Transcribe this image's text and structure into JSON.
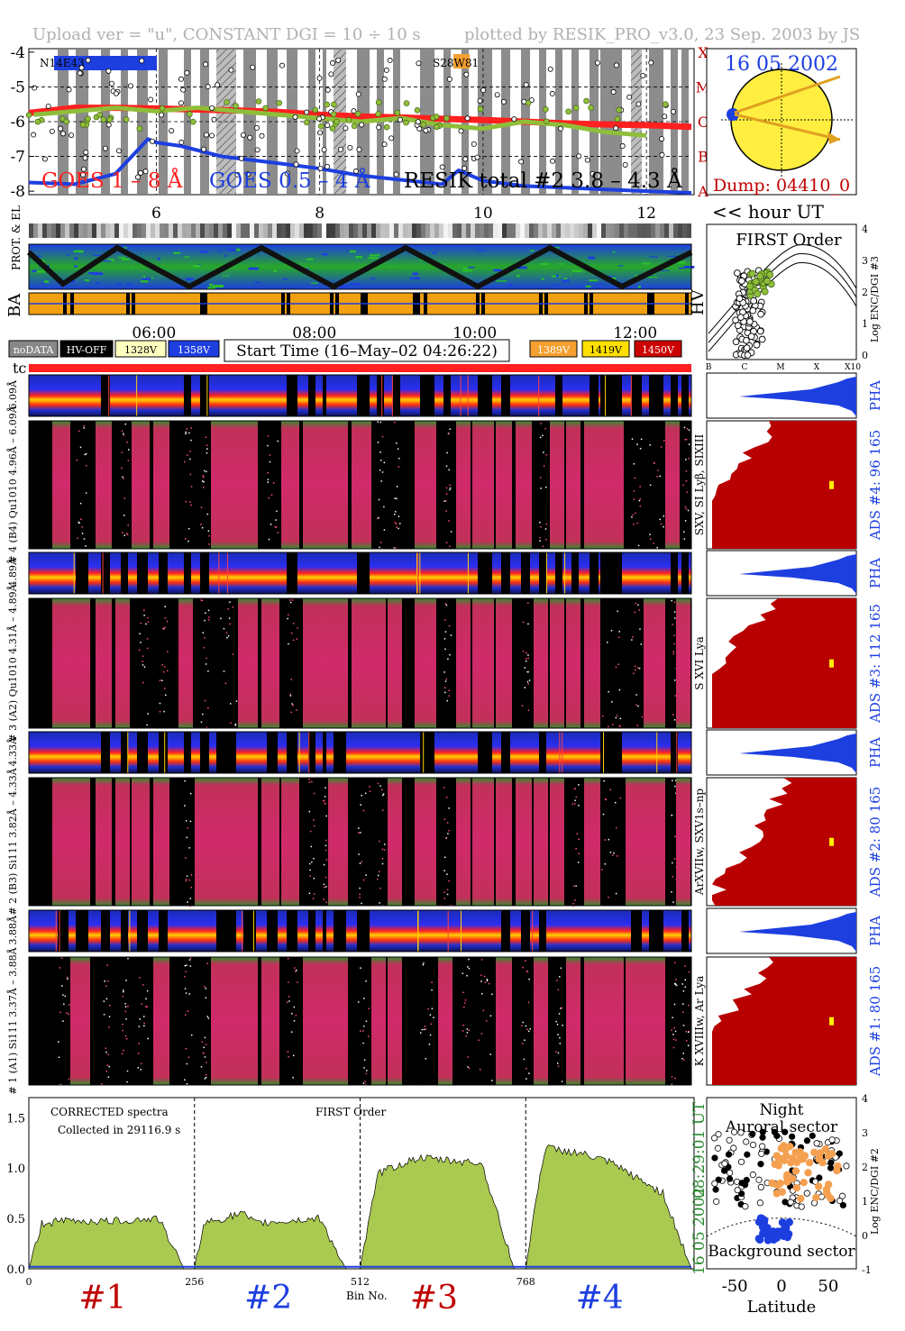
{
  "header": {
    "upload_text": "Upload ver = \"u\", CONSTANT  DGI =  10 ÷  10 s",
    "plotted_text": "plotted by RESIK_PRO_v3.0, 23 Sep. 2003 by JS"
  },
  "goes": {
    "yticks": [
      "-4",
      "-5",
      "-6",
      "-7",
      "-8"
    ],
    "flare_classes": [
      "X",
      "M",
      "C",
      "B",
      "A"
    ],
    "ar_labels": [
      "N14E43",
      "S28W81"
    ],
    "xticks": [
      "6",
      "8",
      "10",
      "12"
    ],
    "hour_label": "<< hour UT",
    "legend": [
      "GOES 1 – 8 Å",
      "GOES 0.5 – 4 Å",
      "RESIK total #2  3.8 – 4.3 Å"
    ],
    "colors": {
      "goes_long": "#ff2020",
      "goes_short": "#1d3fe0",
      "resik": "#8fbe3a"
    }
  },
  "sun": {
    "date": "16 05 2002",
    "dump": "Dump: 04410_0"
  },
  "status": {
    "side_labels": [
      "PROT. & EL",
      "BA"
    ],
    "hv_label": "HV",
    "time_ticks": [
      "06:00",
      "08:00",
      "10:00",
      "12:00"
    ]
  },
  "first_order": {
    "title": "FIRST Order",
    "xticks": [
      "B",
      "C",
      "M",
      "X",
      "X10"
    ],
    "yticks": [
      "4",
      "3",
      "2",
      "1",
      "0"
    ],
    "ylabel": "Log ENC/DGI #3"
  },
  "legend_boxes": {
    "left": [
      {
        "label": "noDATA",
        "bg": "#888888",
        "fg": "#ffffff"
      },
      {
        "label": "HV-OFF",
        "bg": "#000000",
        "fg": "#ffffff"
      },
      {
        "label": "1328V",
        "bg": "#ffffc0",
        "fg": "#000000"
      },
      {
        "label": "1358V",
        "bg": "#1d3fe0",
        "fg": "#ffffff"
      }
    ],
    "start_time": "Start Time (16–May–02 04:26:22)",
    "right": [
      {
        "label": "1389V",
        "bg": "#f5a030",
        "fg": "#ffffff"
      },
      {
        "label": "1419V",
        "bg": "#ffe000",
        "fg": "#000000"
      },
      {
        "label": "1450V",
        "bg": "#cc0000",
        "fg": "#ffffff"
      }
    ]
  },
  "tc_label": "tc",
  "channels": [
    {
      "pha_label": "6.09Å",
      "spec_label": "# 4 (B4) Qu1010 4.96Å – 6.09Å",
      "line_label": "SXV, SI Lyβ, SIXIII",
      "ads_label": "ADS #4:   96 165",
      "pha_side": "PHA"
    },
    {
      "pha_label": "4.89Å",
      "spec_label": "# 3 (A2) Qu1010 4.31Å – 4.89Å",
      "line_label": "S XVI Lya",
      "ads_label": "ADS #3:  112 165",
      "pha_side": "PHA"
    },
    {
      "pha_label": "4.33Å",
      "spec_label": "# 2 (B3) Si111 3.82Å – 4.33Å",
      "line_label": "ArXVIIw, SXV1s–np",
      "ads_label": "ADS #2:   80 165",
      "pha_side": "PHA"
    },
    {
      "pha_label": "3.88Å",
      "spec_label": "# 1 (A1) Si111 3.37Å – 3.88Å",
      "line_label": "K XVIIIw, Ar Lya",
      "ads_label": "ADS #1:   80 165",
      "pha_side": "PHA"
    }
  ],
  "bottom_spectrum": {
    "corrected": "CORRECTED spectra",
    "collected": "Collected in 29116.9 s",
    "order": "FIRST Order",
    "xlabel": "Bin No.",
    "time_label": "08:29:01 UT",
    "date_label": "16 05 2002",
    "big_labels": [
      "#1",
      "#2",
      "#3",
      "#4"
    ]
  },
  "latitude": {
    "title": "Night",
    "auroral": "Auroral sector",
    "background": "Background sector",
    "xlabel": "Latitude",
    "ylabel": "Log ENC/DGI #2",
    "xticks": [
      "-50",
      "0",
      "50"
    ],
    "yticks": [
      "4",
      "3",
      "2",
      "1",
      "0",
      "-1"
    ]
  },
  "chart_data": [
    {
      "type": "line",
      "title": "",
      "xlabel": "<< hour UT",
      "ylabel": "",
      "xlim": [
        4.44,
        12.55
      ],
      "ylim": [
        -8.1,
        -3.9
      ],
      "xticks": [
        6,
        8,
        10,
        12
      ],
      "yticks": [
        -4,
        -5,
        -6,
        -7,
        -8
      ],
      "series": [
        {
          "name": "GOES 1 – 8 Å",
          "color": "#ff2020",
          "x": [
            4.44,
            5.0,
            5.5,
            6.0,
            6.5,
            7.0,
            7.5,
            8.0,
            8.5,
            9.0,
            9.5,
            10.0,
            10.5,
            11.0,
            11.5,
            12.0,
            12.55
          ],
          "y": [
            -5.75,
            -5.6,
            -5.6,
            -5.62,
            -5.65,
            -5.68,
            -5.72,
            -5.8,
            -5.85,
            -5.88,
            -5.92,
            -5.95,
            -6.0,
            -6.05,
            -6.08,
            -6.1,
            -6.15
          ]
        },
        {
          "name": "GOES 0.5 – 4 Å",
          "color": "#1d3fe0",
          "x": [
            4.44,
            5.0,
            5.5,
            5.9,
            6.0,
            6.3,
            6.8,
            7.5,
            8.0,
            8.5,
            8.9,
            9.5,
            9.7,
            10.0,
            10.5,
            11.0,
            11.5,
            12.0,
            12.55
          ],
          "y": [
            -7.75,
            -7.8,
            -7.5,
            -6.5,
            -6.6,
            -6.7,
            -7.0,
            -7.2,
            -7.35,
            -7.55,
            -7.65,
            -7.8,
            -7.4,
            -7.7,
            -7.85,
            -7.9,
            -7.95,
            -8.0,
            -8.05
          ]
        },
        {
          "name": "RESIK total #2  3.8 – 4.3 Å",
          "color": "#8fbe3a",
          "x": [
            4.5,
            5.0,
            5.5,
            6.0,
            6.5,
            7.0,
            7.5,
            8.0,
            8.5,
            9.0,
            9.5,
            10.0,
            10.5,
            11.0,
            11.5,
            12.0
          ],
          "y": [
            -5.8,
            -5.7,
            -5.6,
            -5.7,
            -5.6,
            -5.7,
            -5.8,
            -5.9,
            -6.0,
            -5.9,
            -6.1,
            -6.2,
            -6.0,
            -6.1,
            -6.3,
            -6.4
          ]
        }
      ]
    },
    {
      "type": "area",
      "title": "",
      "xlabel": "Bin No.",
      "ylabel": "",
      "xlim": [
        0,
        1024
      ],
      "ylim": [
        0,
        1.7
      ],
      "xticks": [
        0,
        256,
        512,
        768
      ],
      "yticks": [
        0.0,
        0.5,
        1.0,
        1.5
      ],
      "series": [
        {
          "name": "",
          "color": "#a9c950",
          "x": [
            0,
            20,
            60,
            120,
            200,
            240,
            256,
            270,
            330,
            350,
            450,
            490,
            512,
            540,
            600,
            700,
            750,
            768,
            790,
            800,
            850,
            900,
            980,
            1024
          ],
          "y": [
            0.0,
            0.45,
            0.48,
            0.47,
            0.5,
            0.0,
            0.0,
            0.45,
            0.55,
            0.45,
            0.5,
            0.0,
            0.0,
            0.95,
            1.1,
            1.05,
            0.0,
            0.0,
            0.95,
            1.2,
            1.15,
            1.05,
            0.75,
            0.0
          ]
        }
      ]
    },
    {
      "type": "scatter",
      "title": "Night",
      "xlabel": "Latitude",
      "ylabel": "Log ENC/DGI #2",
      "xlim": [
        -80,
        80
      ],
      "ylim": [
        -1,
        4
      ],
      "xticks": [
        -50,
        0,
        50
      ],
      "yticks": [
        4,
        3,
        2,
        1,
        0,
        -1
      ],
      "series": [
        {
          "name": "",
          "color": "#f5a050",
          "x": [
            -5,
            0,
            5,
            10,
            15,
            20,
            25,
            30,
            35,
            40,
            50,
            60,
            -10,
            -5
          ],
          "y": [
            2.3,
            2.2,
            2.3,
            2.1,
            2.4,
            2.2,
            2.3,
            2.1,
            2.4,
            2.2,
            2.3,
            2.0,
            1.5,
            1.2
          ]
        },
        {
          "name": "",
          "color": "#1d3fe0",
          "x": [
            -20,
            -15,
            -10,
            -5,
            0,
            5
          ],
          "y": [
            0.3,
            0.2,
            0.0,
            -0.1,
            0.1,
            0.2
          ]
        }
      ]
    }
  ]
}
